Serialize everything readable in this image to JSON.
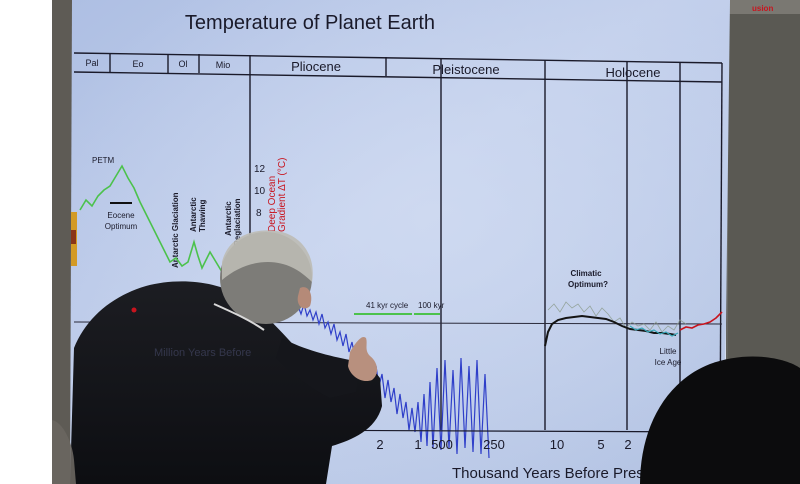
{
  "slide": {
    "title": "Temperature of Planet Earth",
    "epochs": [
      "Pal",
      "Eo",
      "Ol",
      "Mio",
      "Pliocene",
      "Pleistocene",
      "Holocene"
    ],
    "annotations": {
      "petm": "PETM",
      "eocene_optimum_1": "Eocene",
      "eocene_optimum_2": "Optimum",
      "antarctic_glaciation": "Antarctic Glaciation",
      "antarctic_thawing_1": "Antarctic",
      "antarctic_thawing_2": "Thawing",
      "antarctic_reglaciation_1": "Antarctic",
      "antarctic_reglaciation_2": "Reglaciation",
      "cycle_41": "41 kyr cycle",
      "cycle_100": "100 kyr",
      "climatic_optimum_1": "Climatic",
      "climatic_optimum_2": "Optimum?",
      "little_ice_age_1": "Little",
      "little_ice_age_2": "Ice Age",
      "deep_ocean_axis": "Deep Ocean",
      "gradient_axis": "Gradient ΔT (°C)",
      "partial_axis_caption": "Million Years Before"
    },
    "y_ticks": [
      "12",
      "10",
      "8"
    ],
    "x_ticks": [
      "2",
      "1",
      "500",
      "250",
      "10",
      "5",
      "2"
    ],
    "x_axis_label": "Thousand Years Before Prese"
  },
  "projector_brand": "usion",
  "colors": {
    "screen": "#b9c8e6",
    "curve_blue": "#2f3fc9",
    "curve_green": "#4cc24c",
    "curve_black": "#141414",
    "axis_red": "#c8141e",
    "wall": "#5c5a54"
  }
}
